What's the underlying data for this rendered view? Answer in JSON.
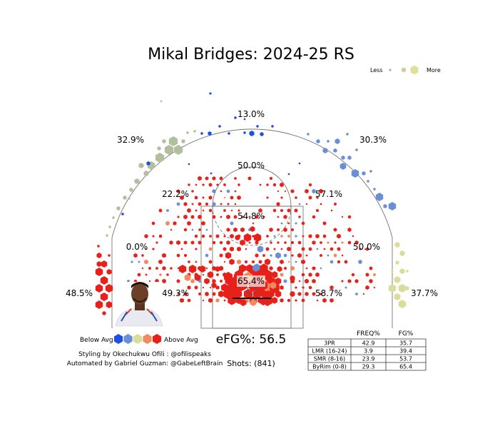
{
  "title": "Mikal Bridges: 2024-25 RS",
  "size_legend": {
    "less": "Less",
    "more": "More",
    "colors": [
      "#b2bf9e",
      "#cfd08e",
      "#e0e09c"
    ]
  },
  "zone_labels": [
    {
      "id": "top-3",
      "text": "13.0%"
    },
    {
      "id": "left-wing-3",
      "text": "32.9%"
    },
    {
      "id": "right-wing-3",
      "text": "30.3%"
    },
    {
      "id": "top-long-mid",
      "text": "50.0%"
    },
    {
      "id": "left-long-mid",
      "text": "22.2%"
    },
    {
      "id": "right-long-mid",
      "text": "57.1%"
    },
    {
      "id": "paint-mid",
      "text": "54.8%"
    },
    {
      "id": "left-mid-base",
      "text": "0.0%"
    },
    {
      "id": "right-mid-base",
      "text": "50.0%"
    },
    {
      "id": "rim",
      "text": "65.4%"
    },
    {
      "id": "left-corner-3",
      "text": "48.5%"
    },
    {
      "id": "right-corner-3",
      "text": "37.7%"
    },
    {
      "id": "left-short-mid",
      "text": "49.3%"
    },
    {
      "id": "right-short-mid",
      "text": "58.7%"
    }
  ],
  "color_legend": {
    "below": "Below Avg",
    "above": "Above Avg",
    "colors": [
      "#1d4fe0",
      "#6b8fd6",
      "#d9dc9a",
      "#f08a5d",
      "#e8201a"
    ]
  },
  "efg_label": "eFG%: 56.5",
  "shots_label": "Shots: (841)",
  "credits": {
    "line1": "Styling by Okechukwu Ofili : @ofilispeaks",
    "line2": "Automated by Gabriel Guzman: @GabeLeftBrain"
  },
  "chart_data": {
    "type": "table",
    "title": "Mikal Bridges: 2024-25 RS",
    "columns": [
      "",
      "FREQ%",
      "FG%"
    ],
    "rows": [
      {
        "zone": "3PR",
        "freq": 42.9,
        "fg": 35.7
      },
      {
        "zone": "LMR (16-24)",
        "freq": 3.9,
        "fg": 39.4
      },
      {
        "zone": "SMR (8-16)",
        "freq": 23.9,
        "fg": 53.7
      },
      {
        "zone": "ByRim (0-8)",
        "freq": 29.3,
        "fg": 65.4
      }
    ],
    "zone_fg_pct": {
      "top_3": 13.0,
      "left_wing_3": 32.9,
      "right_wing_3": 30.3,
      "left_corner_3": 48.5,
      "right_corner_3": 37.7,
      "top_long_mid": 50.0,
      "left_long_mid": 22.2,
      "right_long_mid": 57.1,
      "paint_mid": 54.8,
      "left_baseline_mid": 0.0,
      "right_baseline_mid": 50.0,
      "left_short_mid": 49.3,
      "right_short_mid": 58.7,
      "rim": 65.4
    },
    "efg_pct": 56.5,
    "shots": 841
  }
}
